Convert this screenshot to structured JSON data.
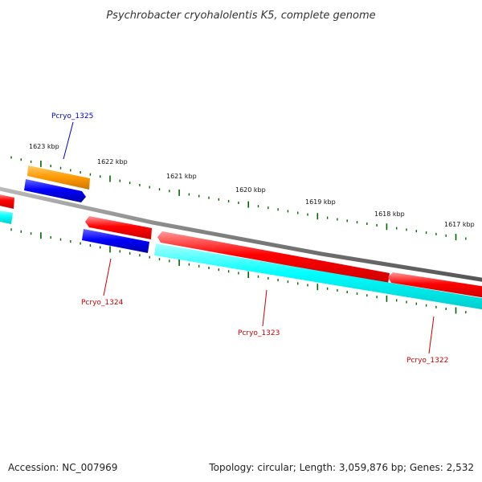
{
  "title": "Psychrobacter cryohalolentis K5, complete genome",
  "footer": {
    "accession": "Accession: NC_007969",
    "summary": "Topology: circular; Length: 3,059,876 bp; Genes: 2,532"
  },
  "ruler": {
    "labels": [
      "1623 kbp",
      "1622 kbp",
      "1621 kbp",
      "1620 kbp",
      "1619 kbp",
      "1618 kbp",
      "1617 kbp"
    ]
  },
  "gene_labels": {
    "pcryo_1325": "Pcryo_1325",
    "pcryo_1324": "Pcryo_1324",
    "pcryo_1323": "Pcryo_1323",
    "pcryo_1322": "Pcryo_1322"
  },
  "colors": {
    "backbone": "#808080",
    "gene_forward": "#ff0000",
    "cds_cyan": "#00ffff",
    "cds_blue": "#0000ff",
    "cds_orange": "#ff9900",
    "tick": "#006600",
    "label_blue": "#0000cc",
    "label_red": "#cc0000"
  }
}
